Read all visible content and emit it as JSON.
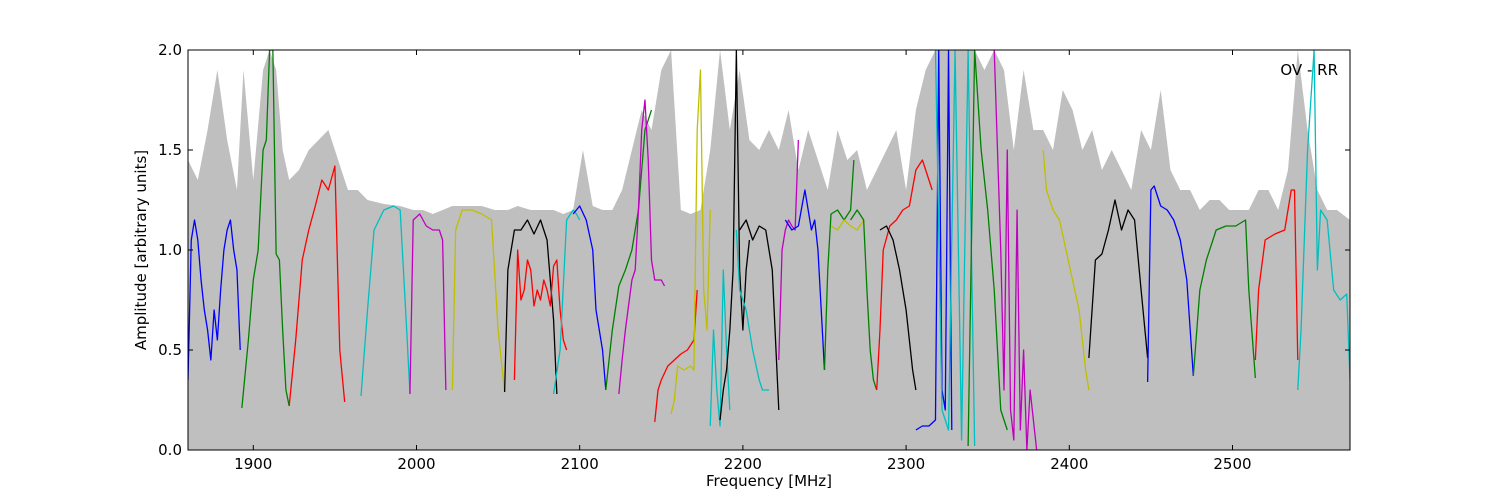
{
  "chart_data": {
    "type": "line",
    "title": "",
    "annotation": "OV - RR",
    "xlabel": "Frequency [MHz]",
    "ylabel": "Amplitude [arbitrary units]",
    "xlim": [
      1860,
      2572
    ],
    "ylim": [
      0.0,
      2.0
    ],
    "xticks": [
      1900,
      2000,
      2100,
      2200,
      2300,
      2400,
      2500
    ],
    "yticks": [
      0.0,
      0.5,
      1.0,
      1.5,
      2.0
    ],
    "xtick_labels": [
      "1900",
      "2000",
      "2100",
      "2200",
      "2300",
      "2400",
      "2500"
    ],
    "ytick_labels": [
      "0.0",
      "0.5",
      "1.0",
      "1.5",
      "2.0"
    ],
    "grid": false,
    "colors": {
      "envelope": "#bfbfbf",
      "palette": [
        "#0000ff",
        "#008000",
        "#ff0000",
        "#00bfbf",
        "#bf00bf",
        "#bfbf00",
        "#000000"
      ]
    },
    "envelope": {
      "x": [
        1860,
        1866,
        1872,
        1878,
        1884,
        1890,
        1894,
        1900,
        1906,
        1910,
        1914,
        1918,
        1922,
        1928,
        1934,
        1940,
        1946,
        1952,
        1958,
        1964,
        1970,
        1980,
        1990,
        1998,
        2004,
        2010,
        2016,
        2022,
        2030,
        2040,
        2048,
        2056,
        2062,
        2070,
        2078,
        2084,
        2090,
        2096,
        2102,
        2108,
        2114,
        2120,
        2126,
        2132,
        2138,
        2144,
        2150,
        2156,
        2162,
        2168,
        2174,
        2180,
        2186,
        2192,
        2198,
        2204,
        2210,
        2216,
        2222,
        2228,
        2234,
        2240,
        2246,
        2252,
        2258,
        2264,
        2270,
        2276,
        2282,
        2288,
        2294,
        2300,
        2306,
        2312,
        2318,
        2324,
        2330,
        2336,
        2342,
        2348,
        2354,
        2360,
        2366,
        2372,
        2378,
        2384,
        2390,
        2396,
        2402,
        2408,
        2414,
        2420,
        2426,
        2432,
        2438,
        2444,
        2450,
        2456,
        2462,
        2468,
        2474,
        2480,
        2486,
        2492,
        2498,
        2504,
        2510,
        2516,
        2522,
        2528,
        2534,
        2540,
        2546,
        2552,
        2558,
        2564,
        2572
      ],
      "y": [
        1.45,
        1.35,
        1.6,
        1.9,
        1.55,
        1.3,
        1.9,
        1.35,
        1.9,
        2.0,
        1.9,
        1.5,
        1.35,
        1.4,
        1.5,
        1.55,
        1.6,
        1.45,
        1.3,
        1.3,
        1.25,
        1.23,
        1.22,
        1.2,
        1.2,
        1.18,
        1.2,
        1.22,
        1.22,
        1.22,
        1.2,
        1.2,
        1.22,
        1.2,
        1.2,
        1.2,
        1.18,
        1.2,
        1.5,
        1.22,
        1.2,
        1.2,
        1.3,
        1.5,
        1.7,
        1.6,
        1.9,
        2.0,
        1.2,
        1.18,
        1.2,
        1.5,
        2.0,
        1.6,
        1.9,
        1.55,
        1.5,
        1.6,
        1.5,
        1.7,
        1.4,
        1.6,
        1.45,
        1.3,
        1.6,
        1.45,
        1.5,
        1.3,
        1.4,
        1.5,
        1.6,
        1.3,
        1.7,
        1.9,
        2.0,
        2.0,
        2.0,
        2.0,
        2.0,
        1.9,
        2.0,
        1.9,
        1.5,
        1.9,
        1.6,
        1.6,
        1.5,
        1.8,
        1.7,
        1.5,
        1.6,
        1.4,
        1.5,
        1.4,
        1.3,
        1.6,
        1.5,
        1.8,
        1.4,
        1.3,
        1.3,
        1.2,
        1.25,
        1.25,
        1.2,
        1.2,
        1.2,
        1.3,
        1.3,
        1.2,
        1.4,
        2.0,
        1.6,
        1.3,
        1.2,
        1.2,
        1.15
      ]
    },
    "series": [
      {
        "color": "#0000ff",
        "x": [
          1860,
          1862,
          1864,
          1866,
          1868,
          1870,
          1872,
          1874,
          1876,
          1878,
          1880,
          1882,
          1884,
          1886,
          1888,
          1890,
          1892
        ],
        "y": [
          0.35,
          1.05,
          1.15,
          1.05,
          0.85,
          0.7,
          0.6,
          0.45,
          0.7,
          0.55,
          0.8,
          1.0,
          1.1,
          1.15,
          1.0,
          0.9,
          0.5
        ]
      },
      {
        "color": "#008000",
        "x": [
          1893,
          1897,
          1900,
          1903,
          1906,
          1908,
          1910,
          1912,
          1914,
          1916,
          1918,
          1920,
          1922
        ],
        "y": [
          0.21,
          0.55,
          0.85,
          1.0,
          1.5,
          1.55,
          2.0,
          2.0,
          0.98,
          0.95,
          0.6,
          0.3,
          0.22
        ]
      },
      {
        "color": "#ff0000",
        "x": [
          1922,
          1926,
          1930,
          1934,
          1938,
          1942,
          1946,
          1950,
          1953,
          1956
        ],
        "y": [
          0.22,
          0.55,
          0.95,
          1.1,
          1.22,
          1.35,
          1.3,
          1.42,
          0.5,
          0.24
        ]
      },
      {
        "color": "#00bfbf",
        "x": [
          1966,
          1970,
          1974,
          1980,
          1986,
          1990,
          1994,
          1996
        ],
        "y": [
          0.27,
          0.7,
          1.1,
          1.2,
          1.22,
          1.2,
          0.6,
          0.28
        ]
      },
      {
        "color": "#bf00bf",
        "x": [
          1996,
          1998,
          2002,
          2006,
          2010,
          2014,
          2016,
          2018
        ],
        "y": [
          0.28,
          1.15,
          1.18,
          1.12,
          1.1,
          1.1,
          1.05,
          0.3
        ]
      },
      {
        "color": "#bfbf00",
        "x": [
          2022,
          2024,
          2028,
          2034,
          2040,
          2046,
          2050,
          2054
        ],
        "y": [
          0.3,
          1.1,
          1.2,
          1.2,
          1.18,
          1.15,
          0.6,
          0.29
        ]
      },
      {
        "color": "#000000",
        "x": [
          2054,
          2056,
          2060,
          2064,
          2068,
          2072,
          2076,
          2080,
          2084,
          2086
        ],
        "y": [
          0.29,
          0.9,
          1.1,
          1.1,
          1.15,
          1.08,
          1.15,
          1.05,
          0.65,
          0.28
        ]
      },
      {
        "color": "#ff0000",
        "x": [
          2060,
          2062,
          2064,
          2066,
          2068,
          2070,
          2072,
          2074,
          2076,
          2078,
          2080,
          2082,
          2084,
          2086,
          2088,
          2090,
          2092
        ],
        "y": [
          0.35,
          1.0,
          0.75,
          0.8,
          0.95,
          0.9,
          0.72,
          0.8,
          0.75,
          0.85,
          0.8,
          0.72,
          0.92,
          0.95,
          0.7,
          0.55,
          0.5
        ]
      },
      {
        "color": "#00bfbf",
        "x": [
          2084,
          2088,
          2092,
          2096,
          2098,
          2100
        ],
        "y": [
          0.28,
          0.5,
          1.15,
          1.2,
          1.18,
          1.15
        ]
      },
      {
        "color": "#0000ff",
        "x": [
          2096,
          2100,
          2104,
          2108,
          2110,
          2114,
          2116
        ],
        "y": [
          1.18,
          1.22,
          1.15,
          1.0,
          0.7,
          0.5,
          0.3
        ]
      },
      {
        "color": "#008000",
        "x": [
          2116,
          2120,
          2124,
          2128,
          2132,
          2136,
          2140,
          2144
        ],
        "y": [
          0.3,
          0.6,
          0.82,
          0.9,
          1.0,
          1.2,
          1.6,
          1.7
        ]
      },
      {
        "color": "#bf00bf",
        "x": [
          2124,
          2126,
          2128,
          2132,
          2134,
          2136,
          2138,
          2140,
          2142,
          2144,
          2146,
          2148,
          2150,
          2152
        ],
        "y": [
          0.28,
          0.45,
          0.6,
          0.85,
          0.9,
          1.2,
          1.6,
          1.75,
          1.45,
          0.95,
          0.85,
          0.85,
          0.85,
          0.82
        ]
      },
      {
        "color": "#ff0000",
        "x": [
          2146,
          2148,
          2150,
          2154,
          2158,
          2162,
          2166,
          2170,
          2172
        ],
        "y": [
          0.14,
          0.3,
          0.35,
          0.42,
          0.45,
          0.48,
          0.5,
          0.55,
          0.8
        ]
      },
      {
        "color": "#bfbf00",
        "x": [
          2156,
          2158,
          2160,
          2164,
          2168,
          2170,
          2172,
          2174,
          2176,
          2178,
          2180
        ],
        "y": [
          0.18,
          0.25,
          0.42,
          0.4,
          0.42,
          0.4,
          1.6,
          1.9,
          0.8,
          0.6,
          1.2
        ]
      },
      {
        "color": "#00bfbf",
        "x": [
          2180,
          2182,
          2184,
          2186,
          2188,
          2190,
          2192
        ],
        "y": [
          0.12,
          0.6,
          0.3,
          0.12,
          0.9,
          0.5,
          0.2
        ]
      },
      {
        "color": "#000000",
        "x": [
          2186,
          2188,
          2190,
          2192,
          2194,
          2196,
          2198,
          2200,
          2202,
          2204
        ],
        "y": [
          0.15,
          0.3,
          0.4,
          0.6,
          0.9,
          2.0,
          0.9,
          0.6,
          0.9,
          1.05
        ]
      },
      {
        "color": "#000000",
        "x": [
          2198,
          2202,
          2206,
          2210,
          2214,
          2218,
          2222
        ],
        "y": [
          1.1,
          1.15,
          1.05,
          1.12,
          1.1,
          0.9,
          0.2
        ]
      },
      {
        "color": "#00bfbf",
        "x": [
          2196,
          2198,
          2202,
          2206,
          2210,
          2212,
          2216
        ],
        "y": [
          1.1,
          0.8,
          0.7,
          0.5,
          0.35,
          0.3,
          0.3
        ]
      },
      {
        "color": "#bf00bf",
        "x": [
          2222,
          2224,
          2226,
          2228,
          2230,
          2232,
          2234
        ],
        "y": [
          0.45,
          1.0,
          1.1,
          1.15,
          1.12,
          1.1,
          1.55
        ]
      },
      {
        "color": "#0000ff",
        "x": [
          2226,
          2230,
          2234,
          2238,
          2242,
          2244,
          2246,
          2248,
          2250
        ],
        "y": [
          1.15,
          1.1,
          1.12,
          1.3,
          1.1,
          1.15,
          1.0,
          0.7,
          0.4
        ]
      },
      {
        "color": "#008000",
        "x": [
          2250,
          2252,
          2254,
          2258,
          2262,
          2266,
          2268
        ],
        "y": [
          0.4,
          0.9,
          1.18,
          1.2,
          1.15,
          1.2,
          1.45
        ]
      },
      {
        "color": "#bfbf00",
        "x": [
          2254,
          2258,
          2262,
          2266,
          2270,
          2274
        ],
        "y": [
          1.12,
          1.1,
          1.15,
          1.12,
          1.1,
          1.15
        ]
      },
      {
        "color": "#008000",
        "x": [
          2266,
          2270,
          2274,
          2276,
          2278,
          2280,
          2282
        ],
        "y": [
          1.15,
          1.2,
          1.15,
          0.8,
          0.5,
          0.35,
          0.3
        ]
      },
      {
        "color": "#ff0000",
        "x": [
          2282,
          2284,
          2286,
          2290,
          2294,
          2298,
          2302,
          2306,
          2310,
          2314,
          2316
        ],
        "y": [
          0.3,
          0.6,
          1.0,
          1.12,
          1.15,
          1.2,
          1.22,
          1.4,
          1.45,
          1.35,
          1.3
        ]
      },
      {
        "color": "#000000",
        "x": [
          2284,
          2288,
          2292,
          2296,
          2300,
          2304,
          2306
        ],
        "y": [
          1.1,
          1.12,
          1.05,
          0.9,
          0.7,
          0.4,
          0.3
        ]
      },
      {
        "color": "#0000ff",
        "x": [
          2306,
          2310,
          2314,
          2318,
          2320,
          2322,
          2324,
          2326,
          2328
        ],
        "y": [
          0.1,
          0.12,
          0.12,
          0.15,
          2.0,
          0.3,
          0.2,
          2.0,
          0.1
        ]
      },
      {
        "color": "#00bfbf",
        "x": [
          2318,
          2322,
          2326,
          2330,
          2334,
          2338,
          2342
        ],
        "y": [
          2.0,
          0.2,
          0.1,
          2.0,
          0.05,
          2.0,
          0.02
        ]
      },
      {
        "color": "#008000",
        "x": [
          2338,
          2342,
          2346,
          2350,
          2354,
          2358,
          2362
        ],
        "y": [
          0.02,
          2.0,
          1.5,
          1.2,
          0.8,
          0.2,
          0.1
        ]
      },
      {
        "color": "#bf00bf",
        "x": [
          2354,
          2358,
          2360,
          2362,
          2364,
          2366,
          2368,
          2370,
          2372,
          2374,
          2376,
          2380
        ],
        "y": [
          2.0,
          1.0,
          0.3,
          1.5,
          0.2,
          0.05,
          1.2,
          0.1,
          0.5,
          0.0,
          0.3,
          0.0
        ]
      },
      {
        "color": "#bfbf00",
        "x": [
          2384,
          2386,
          2390,
          2394,
          2398,
          2402,
          2406,
          2410,
          2412
        ],
        "y": [
          1.5,
          1.3,
          1.2,
          1.15,
          1.0,
          0.85,
          0.7,
          0.4,
          0.3
        ]
      },
      {
        "color": "#000000",
        "x": [
          2412,
          2416,
          2420,
          2424,
          2428,
          2432,
          2436,
          2440,
          2444,
          2448
        ],
        "y": [
          0.46,
          0.95,
          0.98,
          1.1,
          1.25,
          1.1,
          1.2,
          1.15,
          0.8,
          0.46
        ]
      },
      {
        "color": "#0000ff",
        "x": [
          2448,
          2450,
          2452,
          2456,
          2460,
          2464,
          2468,
          2472,
          2476
        ],
        "y": [
          0.34,
          1.3,
          1.32,
          1.22,
          1.2,
          1.15,
          1.05,
          0.85,
          0.37
        ]
      },
      {
        "color": "#008000",
        "x": [
          2476,
          2480,
          2484,
          2490,
          2496,
          2502,
          2508,
          2510,
          2514
        ],
        "y": [
          0.37,
          0.8,
          0.95,
          1.1,
          1.12,
          1.12,
          1.15,
          0.8,
          0.36
        ]
      },
      {
        "color": "#ff0000",
        "x": [
          2514,
          2516,
          2520,
          2526,
          2532,
          2536,
          2538,
          2540
        ],
        "y": [
          0.45,
          0.8,
          1.05,
          1.08,
          1.1,
          1.3,
          1.3,
          0.45
        ]
      },
      {
        "color": "#00bfbf",
        "x": [
          2540,
          2542,
          2546,
          2550,
          2552,
          2554,
          2558,
          2562,
          2566,
          2570,
          2572
        ],
        "y": [
          0.3,
          0.6,
          1.5,
          2.0,
          0.9,
          1.2,
          1.15,
          0.8,
          0.75,
          0.78,
          0.35
        ]
      }
    ]
  }
}
